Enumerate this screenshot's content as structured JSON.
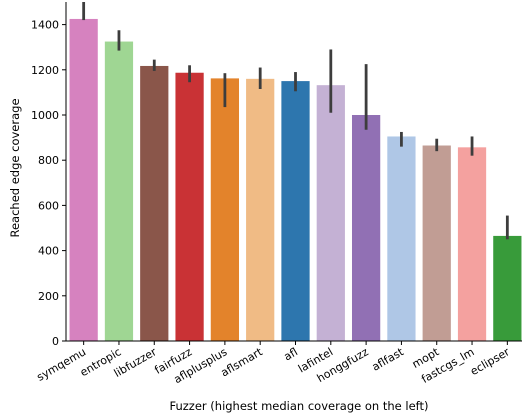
{
  "chart_data": {
    "type": "bar",
    "xlabel": "Fuzzer (highest median coverage on the left)",
    "ylabel": "Reached edge coverage",
    "ylim": [
      0,
      1500
    ],
    "yticks": [
      0,
      200,
      400,
      600,
      800,
      1000,
      1200,
      1400
    ],
    "grid": false,
    "categories": [
      "symqemu",
      "entropic",
      "libfuzzer",
      "fairfuzz",
      "aflplusplus",
      "aflsmart",
      "afl",
      "lafintel",
      "honggfuzz",
      "aflfast",
      "mopt",
      "fastcgs_lm",
      "eclipser"
    ],
    "values": [
      1425,
      1325,
      1217,
      1187,
      1162,
      1160,
      1150,
      1132,
      1000,
      905,
      865,
      857,
      465
    ],
    "error_low": [
      1420,
      1285,
      1195,
      1145,
      1035,
      1115,
      1105,
      1010,
      935,
      860,
      840,
      820,
      450
    ],
    "error_high": [
      1500,
      1375,
      1245,
      1220,
      1185,
      1210,
      1190,
      1290,
      1225,
      925,
      895,
      905,
      555
    ],
    "colors": [
      "#d682bf",
      "#9fd693",
      "#8a564a",
      "#c93235",
      "#e3832b",
      "#f0bb85",
      "#2d76ae",
      "#c4b1d4",
      "#9170b4",
      "#afc7e6",
      "#c19d94",
      "#f4a19f",
      "#389b3a"
    ]
  }
}
